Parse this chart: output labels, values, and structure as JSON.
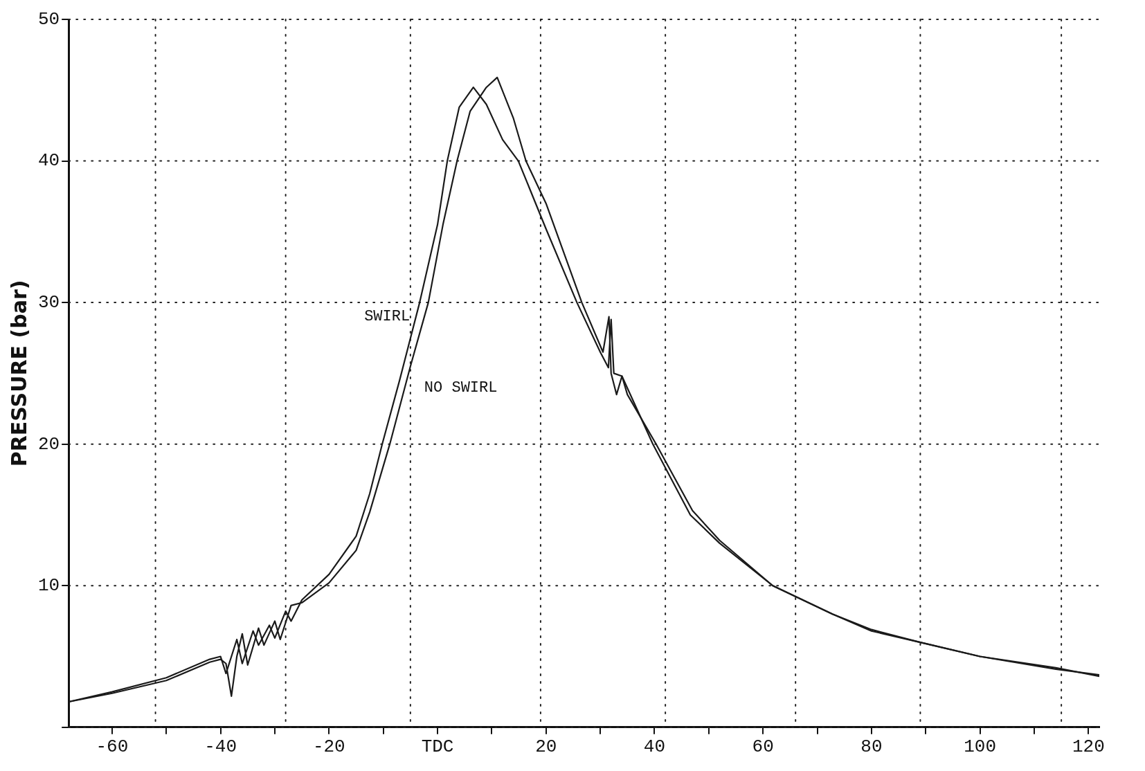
{
  "chart_data": {
    "type": "line",
    "ylabel": "PRESSURE (bar)",
    "xlim": [
      -68,
      122
    ],
    "ylim": [
      0,
      50
    ],
    "xticks": [
      -60,
      {
        "value": -50,
        "label": null
      },
      -40,
      {
        "value": -30,
        "label": null
      },
      -20,
      {
        "value": -10,
        "label": null
      },
      {
        "value": 0,
        "label": "TDC"
      },
      {
        "value": 10,
        "label": null
      },
      20,
      {
        "value": 30,
        "label": null
      },
      40,
      {
        "value": 50,
        "label": null
      },
      60,
      {
        "value": 70,
        "label": null
      },
      80,
      {
        "value": 90,
        "label": null
      },
      100,
      {
        "value": 110,
        "label": null
      },
      120
    ],
    "yticks": [
      {
        "value": 0,
        "label": null
      },
      10,
      20,
      30,
      40,
      50
    ],
    "grid": "y",
    "legend": false,
    "marker": "none",
    "line_style": "solid",
    "ref_lines": [
      {
        "axis": "x",
        "value": -52,
        "line_style": "dotted"
      },
      {
        "axis": "x",
        "value": -28,
        "line_style": "dotted"
      },
      {
        "axis": "x",
        "value": -5,
        "line_style": "dotted"
      },
      {
        "axis": "x",
        "value": 19,
        "line_style": "dotted"
      },
      {
        "axis": "x",
        "value": 42,
        "line_style": "dotted"
      },
      {
        "axis": "x",
        "value": 66,
        "line_style": "dotted"
      },
      {
        "axis": "x",
        "value": 89,
        "line_style": "dotted"
      },
      {
        "axis": "x",
        "value": 115,
        "line_style": "dotted"
      }
    ],
    "series": [
      {
        "name": "SWIRL",
        "color": "#1a1a1a",
        "x": [
          -68,
          -60,
          -50,
          -42,
          -40,
          -39,
          -37,
          -36,
          -34,
          -33,
          -31,
          -30,
          -28,
          -27,
          -25,
          -20,
          -15,
          -12.5,
          -10.2,
          -7,
          -3.3,
          0,
          1.8,
          4,
          6.6,
          9,
          12,
          14.9,
          20,
          25.7,
          30,
          31.5,
          32,
          32.5,
          34,
          39.7,
          46.6,
          52,
          61.8,
          72.8,
          80,
          89,
          100,
          114,
          122
        ],
        "values": [
          1.8,
          2.5,
          3.5,
          4.8,
          5.0,
          3.8,
          6.2,
          4.5,
          6.8,
          5.8,
          7.2,
          6.3,
          8.2,
          7.5,
          9.0,
          10.8,
          13.5,
          16.5,
          20,
          24.5,
          30,
          35.5,
          40,
          43.8,
          45.2,
          44,
          41.5,
          40,
          35.2,
          30,
          26.5,
          25.4,
          28.8,
          25,
          24.8,
          20,
          15,
          13,
          10,
          8,
          6.8,
          6,
          5,
          4.1,
          3.7
        ]
      },
      {
        "name": "NO SWIRL",
        "color": "#1a1a1a",
        "x": [
          -68,
          -60,
          -50,
          -42,
          -40,
          -39,
          -38,
          -37,
          -36,
          -35,
          -33,
          -32,
          -30,
          -29,
          -27,
          -25,
          -20,
          -15,
          -12.5,
          -8.8,
          -5,
          -1.7,
          1,
          3.6,
          6,
          9,
          11,
          14,
          16.3,
          20,
          26.6,
          30.5,
          31.6,
          32,
          33,
          34,
          35,
          40.3,
          47,
          52,
          61.8,
          72.8,
          80,
          89,
          100,
          114,
          122
        ],
        "values": [
          1.8,
          2.4,
          3.3,
          4.6,
          4.8,
          4.5,
          2.2,
          5,
          6.6,
          4.4,
          7,
          5.8,
          7.5,
          6.2,
          8.6,
          8.8,
          10.2,
          12.5,
          15.2,
          20,
          25.5,
          30,
          35.5,
          40,
          43.5,
          45.2,
          45.9,
          43,
          40,
          37,
          30,
          26.5,
          29,
          25,
          23.5,
          24.8,
          23.5,
          20,
          15.3,
          13.2,
          10,
          8,
          6.9,
          6,
          5,
          4.2,
          3.6
        ]
      }
    ]
  }
}
